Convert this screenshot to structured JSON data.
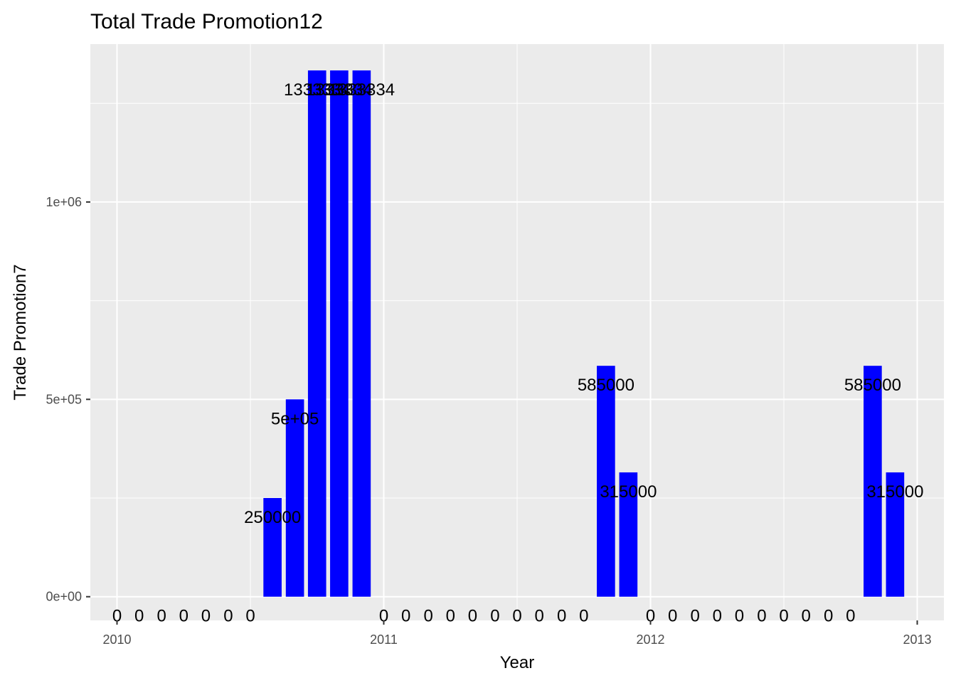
{
  "chart_data": {
    "type": "bar",
    "title": "Total Trade Promotion12",
    "xlabel": "Year",
    "ylabel": "Trade Promotion7",
    "xlim": [
      2009.9,
      2013.1
    ],
    "ylim": [
      -60000,
      1400000
    ],
    "x_ticks": [
      {
        "value": 2010,
        "label": "2010"
      },
      {
        "value": 2011,
        "label": "2011"
      },
      {
        "value": 2012,
        "label": "2012"
      },
      {
        "value": 2013,
        "label": "2013"
      }
    ],
    "y_ticks": [
      {
        "value": 0,
        "label": "0e+00"
      },
      {
        "value": 500000,
        "label": "5e+05"
      },
      {
        "value": 1000000,
        "label": "1e+06"
      }
    ],
    "bar_color": "#0000ff",
    "panel_color": "#ebebeb",
    "grid": true,
    "legend": "none",
    "points": [
      {
        "x": 2010.0,
        "value": 0,
        "label": "0"
      },
      {
        "x": 2010.083,
        "value": 0,
        "label": "0"
      },
      {
        "x": 2010.167,
        "value": 0,
        "label": "0"
      },
      {
        "x": 2010.25,
        "value": 0,
        "label": "0"
      },
      {
        "x": 2010.333,
        "value": 0,
        "label": "0"
      },
      {
        "x": 2010.417,
        "value": 0,
        "label": "0"
      },
      {
        "x": 2010.5,
        "value": 0,
        "label": "0"
      },
      {
        "x": 2010.583,
        "value": 250000,
        "label": "250000"
      },
      {
        "x": 2010.667,
        "value": 500000,
        "label": "5e+05"
      },
      {
        "x": 2010.75,
        "value": 1333334,
        "label": "1333334"
      },
      {
        "x": 2010.833,
        "value": 1333334,
        "label": "1333334"
      },
      {
        "x": 2010.917,
        "value": 1333334,
        "label": "1333334"
      },
      {
        "x": 2011.0,
        "value": 0,
        "label": "0"
      },
      {
        "x": 2011.083,
        "value": 0,
        "label": "0"
      },
      {
        "x": 2011.167,
        "value": 0,
        "label": "0"
      },
      {
        "x": 2011.25,
        "value": 0,
        "label": "0"
      },
      {
        "x": 2011.333,
        "value": 0,
        "label": "0"
      },
      {
        "x": 2011.417,
        "value": 0,
        "label": "0"
      },
      {
        "x": 2011.5,
        "value": 0,
        "label": "0"
      },
      {
        "x": 2011.583,
        "value": 0,
        "label": "0"
      },
      {
        "x": 2011.667,
        "value": 0,
        "label": "0"
      },
      {
        "x": 2011.75,
        "value": 0,
        "label": "0"
      },
      {
        "x": 2011.833,
        "value": 585000,
        "label": "585000"
      },
      {
        "x": 2011.917,
        "value": 315000,
        "label": "315000"
      },
      {
        "x": 2012.0,
        "value": 0,
        "label": "0"
      },
      {
        "x": 2012.083,
        "value": 0,
        "label": "0"
      },
      {
        "x": 2012.167,
        "value": 0,
        "label": "0"
      },
      {
        "x": 2012.25,
        "value": 0,
        "label": "0"
      },
      {
        "x": 2012.333,
        "value": 0,
        "label": "0"
      },
      {
        "x": 2012.417,
        "value": 0,
        "label": "0"
      },
      {
        "x": 2012.5,
        "value": 0,
        "label": "0"
      },
      {
        "x": 2012.583,
        "value": 0,
        "label": "0"
      },
      {
        "x": 2012.667,
        "value": 0,
        "label": "0"
      },
      {
        "x": 2012.75,
        "value": 0,
        "label": "0"
      },
      {
        "x": 2012.833,
        "value": 585000,
        "label": "585000"
      },
      {
        "x": 2012.917,
        "value": 315000,
        "label": "315000"
      }
    ]
  }
}
